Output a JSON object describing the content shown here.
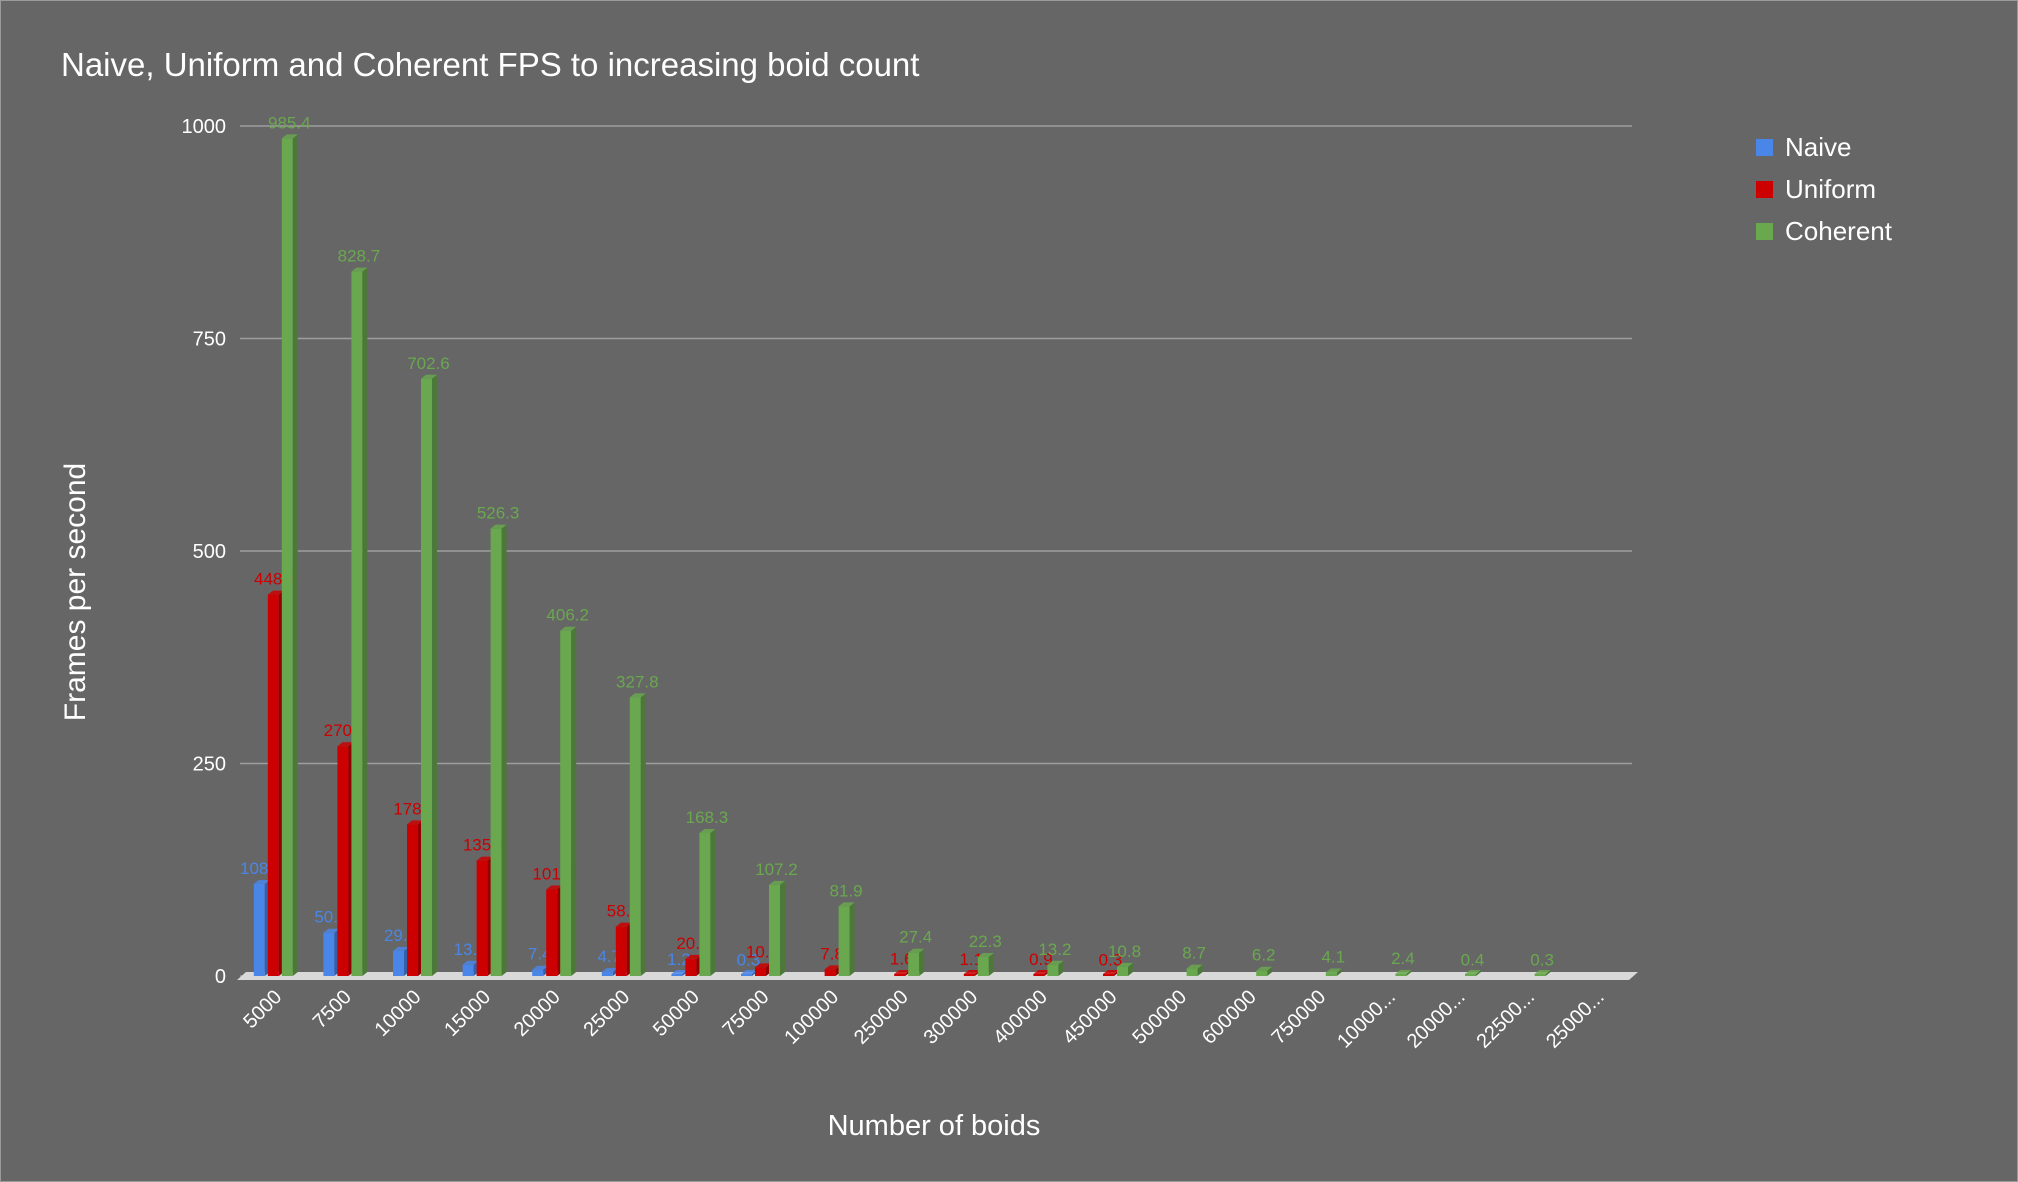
{
  "chart_data": {
    "type": "bar",
    "title": "Naive, Uniform and Coherent FPS to increasing boid count",
    "xlabel": "Number of boids",
    "ylabel": "Frames per second",
    "ylim": [
      0,
      1000
    ],
    "yticks": [
      0,
      250,
      500,
      750,
      1000
    ],
    "grid": true,
    "legend_position": "top-right",
    "categories": [
      "5000",
      "7500",
      "10000",
      "15000",
      "20000",
      "25000",
      "50000",
      "75000",
      "100000",
      "250000",
      "300000",
      "400000",
      "450000",
      "500000",
      "600000",
      "750000",
      "10000...",
      "20000...",
      "22500...",
      "25000..."
    ],
    "series": [
      {
        "name": "Naive",
        "color": "#4a86e8",
        "values": [
          108.3,
          50.9,
          29.5,
          13.2,
          7.4,
          4.7,
          1.2,
          0.3,
          null,
          null,
          null,
          null,
          null,
          null,
          null,
          null,
          null,
          null,
          null,
          null
        ],
        "labels": [
          "108.3",
          "50.9",
          "29.5",
          "13.2",
          "7.4",
          "4.7",
          "1.2",
          "0.3",
          "",
          "",
          "",
          "",
          "",
          "",
          "",
          "",
          "",
          "",
          "",
          ""
        ]
      },
      {
        "name": "Uniform",
        "color": "#cc0000",
        "values": [
          448.7,
          270.3,
          178.4,
          135.8,
          101.7,
          58.1,
          20.1,
          10.1,
          7.8,
          1.6,
          1.1,
          0.9,
          0.3,
          null,
          null,
          null,
          null,
          null,
          null,
          null
        ],
        "labels": [
          "448.7",
          "270.3",
          "178.4",
          "135.8",
          "101.7",
          "58.1",
          "20.1",
          "10.1",
          "7.8",
          "1.6",
          "1.1",
          "0.9",
          "0.3",
          "",
          "",
          "",
          "",
          "",
          "",
          ""
        ]
      },
      {
        "name": "Coherent",
        "color": "#6aa84f",
        "values": [
          985.4,
          828.7,
          702.6,
          526.3,
          406.2,
          327.8,
          168.3,
          107.2,
          81.9,
          27.4,
          22.3,
          13.2,
          10.8,
          8.7,
          6.2,
          4.1,
          2.4,
          0.4,
          0.3,
          null
        ],
        "labels": [
          "985.4",
          "828.7",
          "702.6",
          "526.3",
          "406.2",
          "327.8",
          "168.3",
          "107.2",
          "81.9",
          "27.4",
          "22.3",
          "13.2",
          "10.8",
          "8.7",
          "6.2",
          "4.1",
          "2.4",
          "0.4",
          "0.3",
          ""
        ]
      }
    ]
  }
}
